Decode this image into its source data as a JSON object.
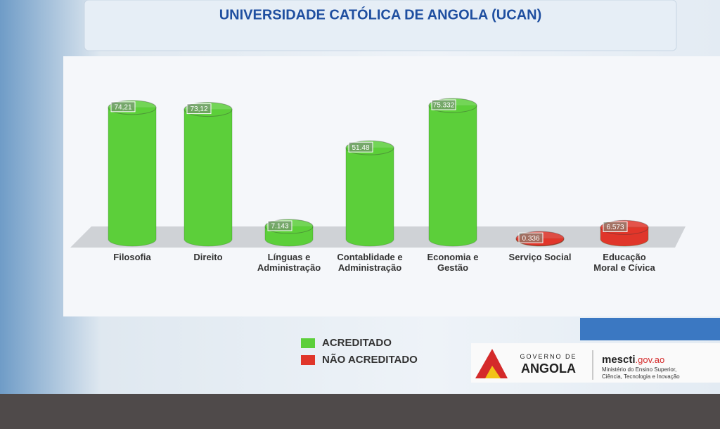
{
  "chart_data": {
    "type": "bar",
    "title": "UNIVERSIDADE CATÓLICA DE ANGOLA (UCAN)",
    "categories": [
      "Filosofia",
      "Direito",
      "Línguas e\nAdministração",
      "Contablidade e\nAdministração",
      "Economia e\nGestão",
      "Serviço Social",
      "Educação\nMoral e Cívica"
    ],
    "values": [
      74.21,
      73.12,
      7.143,
      51.48,
      75.332,
      0.336,
      6.573
    ],
    "value_labels": [
      "74,21",
      "73,12",
      "7.143",
      "51.48",
      "75.332",
      "0.336",
      "6.573"
    ],
    "colors": [
      "#5ccf3a",
      "#5ccf3a",
      "#5ccf3a",
      "#5ccf3a",
      "#5ccf3a",
      "#e0362a",
      "#e0362a"
    ],
    "legend": [
      {
        "label": "ACREDITADO",
        "color": "#5ccf3a"
      },
      {
        "label": "NÃO ACREDITADO",
        "color": "#e0362a"
      }
    ]
  },
  "footer": {
    "gov_line1": "GOVERNO DE",
    "gov_line2": "ANGOLA",
    "site_name": "mescti",
    "site_domain": ".gov.ao",
    "ministry_line1": "Ministério do Ensino Superior,",
    "ministry_line2": "Ciência, Tecnologia e Inovação"
  }
}
